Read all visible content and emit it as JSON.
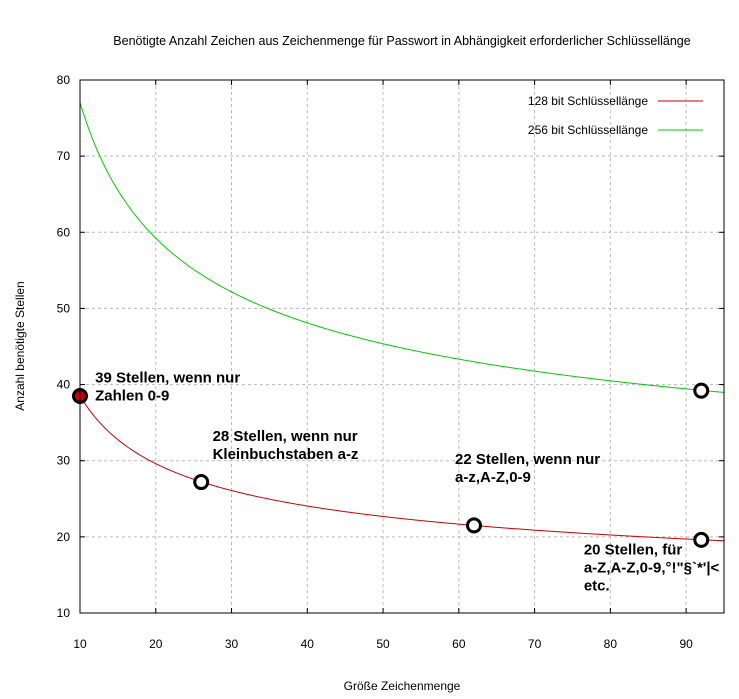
{
  "chart_data": {
    "type": "line",
    "title": "Benötigte Anzahl Zeichen aus Zeichenmenge für Passwort in Abhängigkeit erforderlicher Schlüssellänge",
    "xlabel": "Größe Zeichenmenge",
    "ylabel": "Anzahl benötigte Stellen",
    "xlim": [
      10,
      95
    ],
    "ylim": [
      10,
      80
    ],
    "xticks": [
      10,
      20,
      30,
      40,
      50,
      60,
      70,
      80,
      90
    ],
    "yticks": [
      10,
      20,
      30,
      40,
      50,
      60,
      70,
      80
    ],
    "grid": true,
    "legend_position": "top-right",
    "series": [
      {
        "name": "128 bit Schlüssellänge",
        "bits": 128,
        "color": "#cc0000",
        "formula": "bits / log2(x)"
      },
      {
        "name": "256 bit Schlüssellänge",
        "bits": 256,
        "color": "#00cc00",
        "formula": "bits / log2(x)"
      }
    ],
    "markers": [
      {
        "x": 10,
        "y": 38.5,
        "fill": "#cc0000"
      },
      {
        "x": 26,
        "y": 27.2,
        "fill": "#ffffff"
      },
      {
        "x": 62,
        "y": 21.5,
        "fill": "#ffffff"
      },
      {
        "x": 92,
        "y": 19.6,
        "fill": "#ffffff"
      },
      {
        "x": 92,
        "y": 39.2,
        "fill": "#ffffff"
      }
    ],
    "annotations": [
      {
        "lines": [
          "39 Stellen, wenn nur",
          "Zahlen 0-9"
        ],
        "x": 12,
        "y": 40.3
      },
      {
        "lines": [
          "28 Stellen, wenn nur",
          "Kleinbuchstaben a-z"
        ],
        "x": 27.5,
        "y": 32.6
      },
      {
        "lines": [
          "22 Stellen, wenn nur",
          "a-z,A-Z,0-9"
        ],
        "x": 59.5,
        "y": 29.6
      },
      {
        "lines": [
          "20 Stellen, für",
          "a-Z,A-Z,0-9,°!\"§`*'|<",
          "etc."
        ],
        "x": 76.5,
        "y": 17.7
      }
    ]
  }
}
